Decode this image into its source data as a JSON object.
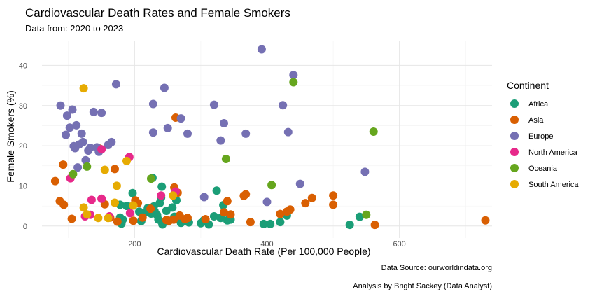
{
  "chart_data": {
    "type": "scatter",
    "title": "Cardiovascular Death Rates and Female Smokers",
    "subtitle": "Data from: 2020 to 2023",
    "xlabel": "Cardiovascular Death Rate (Per 100,000 People)",
    "ylabel": "Female Smokers (%)",
    "xlim": [
      60,
      740
    ],
    "ylim": [
      -3,
      46
    ],
    "xticks": [
      200,
      400,
      600
    ],
    "yticks": [
      0,
      10,
      20,
      30,
      40
    ],
    "grid": true,
    "legend": {
      "title": "Continent",
      "placement": "right"
    },
    "caption": [
      "Data Source: ourworldindata.org",
      "Analysis by Bright Sackey (Data Analyst)"
    ],
    "series": [
      {
        "name": "Africa",
        "color": "#1b9e77",
        "points": [
          [
            192,
            4.8
          ],
          [
            197,
            8.2
          ],
          [
            178,
            5.3
          ],
          [
            178,
            2.1
          ],
          [
            180,
            0.6
          ],
          [
            182,
            1.6
          ],
          [
            188,
            5.0
          ],
          [
            207,
            3.6
          ],
          [
            213,
            3.3
          ],
          [
            216,
            3.4
          ],
          [
            220,
            4.5
          ],
          [
            225,
            3.1
          ],
          [
            229,
            4.9
          ],
          [
            230,
            3.7
          ],
          [
            234,
            2.7
          ],
          [
            236,
            1.6
          ],
          [
            238,
            5.7
          ],
          [
            240,
            7.1
          ],
          [
            241,
            9.8
          ],
          [
            242,
            0.4
          ],
          [
            250,
            1.2
          ],
          [
            257,
            4.6
          ],
          [
            260,
            2.3
          ],
          [
            264,
            1.7
          ],
          [
            266,
            2.2
          ],
          [
            270,
            0.8
          ],
          [
            276,
            1.5
          ],
          [
            282,
            0.9
          ],
          [
            300,
            0.7
          ],
          [
            305,
            1.5
          ],
          [
            312,
            0.4
          ],
          [
            320,
            2.4
          ],
          [
            324,
            8.8
          ],
          [
            330,
            2.0
          ],
          [
            334,
            5.2
          ],
          [
            340,
            1.4
          ],
          [
            345,
            1.6
          ],
          [
            395,
            0.5
          ],
          [
            405,
            0.5
          ],
          [
            420,
            1.0
          ],
          [
            430,
            2.6
          ],
          [
            525,
            0.3
          ],
          [
            540,
            2.3
          ],
          [
            227,
            12.0
          ],
          [
            263,
            6.4
          ],
          [
            210,
            1.2
          ],
          [
            248,
            3.8
          ]
        ]
      },
      {
        "name": "Asia",
        "color": "#d95f02",
        "points": [
          [
            80,
            11.2
          ],
          [
            87,
            6.2
          ],
          [
            92,
            15.3
          ],
          [
            93,
            5.3
          ],
          [
            105,
            1.8
          ],
          [
            147,
            19.3
          ],
          [
            155,
            5.4
          ],
          [
            163,
            2.1
          ],
          [
            170,
            14.2
          ],
          [
            174,
            1.1
          ],
          [
            198,
            1.3
          ],
          [
            201,
            6.4
          ],
          [
            205,
            5.7
          ],
          [
            212,
            2.1
          ],
          [
            224,
            4.3
          ],
          [
            248,
            1.5
          ],
          [
            252,
            1.3
          ],
          [
            259,
            1.6
          ],
          [
            260,
            9.6
          ],
          [
            262,
            27.0
          ],
          [
            265,
            8.3
          ],
          [
            268,
            2.6
          ],
          [
            276,
            1.7
          ],
          [
            280,
            2.0
          ],
          [
            307,
            1.7
          ],
          [
            335,
            3.4
          ],
          [
            340,
            6.2
          ],
          [
            345,
            2.9
          ],
          [
            365,
            7.5
          ],
          [
            368,
            7.9
          ],
          [
            375,
            1.0
          ],
          [
            420,
            3.0
          ],
          [
            430,
            3.6
          ],
          [
            435,
            4.1
          ],
          [
            458,
            5.7
          ],
          [
            468,
            7.0
          ],
          [
            500,
            7.6
          ],
          [
            500,
            5.3
          ],
          [
            563,
            0.3
          ],
          [
            730,
            1.4
          ]
        ]
      },
      {
        "name": "Europe",
        "color": "#7570b3",
        "points": [
          [
            88,
            30.0
          ],
          [
            96,
            22.7
          ],
          [
            98,
            27.5
          ],
          [
            102,
            24.5
          ],
          [
            106,
            29.0
          ],
          [
            108,
            19.9
          ],
          [
            110,
            19.4
          ],
          [
            112,
            25.1
          ],
          [
            114,
            14.6
          ],
          [
            116,
            20.3
          ],
          [
            120,
            23.0
          ],
          [
            122,
            20.9
          ],
          [
            126,
            16.4
          ],
          [
            130,
            18.8
          ],
          [
            133,
            19.5
          ],
          [
            138,
            28.4
          ],
          [
            143,
            19.6
          ],
          [
            146,
            18.5
          ],
          [
            150,
            28.2
          ],
          [
            160,
            20.2
          ],
          [
            165,
            20.9
          ],
          [
            172,
            35.3
          ],
          [
            228,
            30.4
          ],
          [
            228,
            23.3
          ],
          [
            245,
            34.4
          ],
          [
            250,
            24.4
          ],
          [
            270,
            26.8
          ],
          [
            280,
            23.0
          ],
          [
            305,
            7.2
          ],
          [
            320,
            30.2
          ],
          [
            330,
            21.3
          ],
          [
            335,
            25.6
          ],
          [
            368,
            23.0
          ],
          [
            392,
            44.0
          ],
          [
            400,
            6.0
          ],
          [
            424,
            30.1
          ],
          [
            432,
            23.4
          ],
          [
            440,
            37.6
          ],
          [
            450,
            10.5
          ],
          [
            548,
            13.5
          ]
        ]
      },
      {
        "name": "North America",
        "color": "#e7298a",
        "points": [
          [
            103,
            11.9
          ],
          [
            125,
            2.4
          ],
          [
            135,
            6.5
          ],
          [
            150,
            6.8
          ],
          [
            150,
            19.1
          ],
          [
            162,
            2.4
          ],
          [
            192,
            17.2
          ],
          [
            193,
            3.2
          ],
          [
            240,
            7.6
          ],
          [
            262,
            8.6
          ],
          [
            133,
            2.8
          ]
        ]
      },
      {
        "name": "Oceania",
        "color": "#66a61e",
        "points": [
          [
            107,
            12.9
          ],
          [
            128,
            14.8
          ],
          [
            225,
            11.8
          ],
          [
            338,
            16.7
          ],
          [
            407,
            10.2
          ],
          [
            440,
            35.8
          ],
          [
            550,
            2.8
          ],
          [
            561,
            23.5
          ]
        ]
      },
      {
        "name": "South America",
        "color": "#e6ab02",
        "points": [
          [
            123,
            34.3
          ],
          [
            123,
            4.6
          ],
          [
            128,
            2.9
          ],
          [
            145,
            2.0
          ],
          [
            155,
            14.0
          ],
          [
            170,
            5.8
          ],
          [
            173,
            10.0
          ],
          [
            188,
            16.2
          ],
          [
            198,
            5.1
          ],
          [
            258,
            7.6
          ],
          [
            160,
            2.0
          ]
        ]
      }
    ]
  }
}
